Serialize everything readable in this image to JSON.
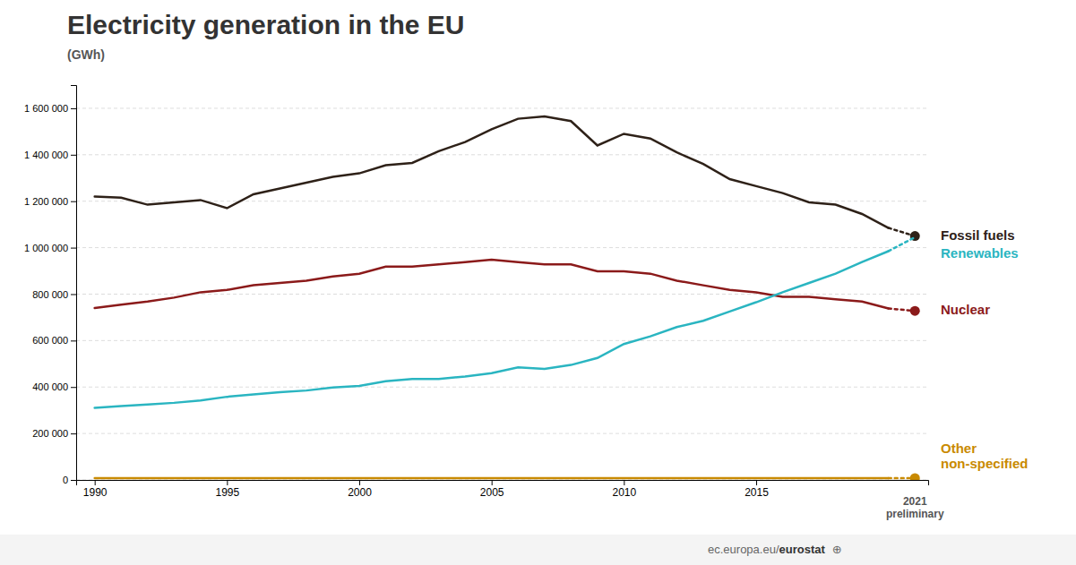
{
  "chart_data": {
    "type": "line",
    "title": "Electricity generation in the EU",
    "subtitle": "(GWh)",
    "x": [
      1990,
      1991,
      1992,
      1993,
      1994,
      1995,
      1996,
      1997,
      1998,
      1999,
      2000,
      2001,
      2002,
      2003,
      2004,
      2005,
      2006,
      2007,
      2008,
      2009,
      2010,
      2011,
      2012,
      2013,
      2014,
      2015,
      2016,
      2017,
      2018,
      2019,
      2020,
      2021
    ],
    "xlim": [
      1989.3,
      2021.5
    ],
    "xticks": [
      1990,
      1995,
      2000,
      2005,
      2010,
      2015
    ],
    "ylim": [
      0,
      1700000
    ],
    "yticks": [
      0,
      {
        "value": 200000,
        "label": "200 000"
      },
      {
        "value": 400000,
        "label": "400 000"
      },
      {
        "value": 600000,
        "label": "600 000"
      },
      {
        "value": 800000,
        "label": "800 000"
      },
      {
        "value": 1000000,
        "label": "1 000 000"
      },
      {
        "value": 1200000,
        "label": "1 200 000"
      },
      {
        "value": 1400000,
        "label": "1 400 000"
      },
      {
        "value": 1600000,
        "label": "1 600 000"
      }
    ],
    "grid": true,
    "series": [
      {
        "name": "Fossil fuels",
        "color": "#2e2118",
        "marker": "circle",
        "values": [
          1220000,
          1215000,
          1185000,
          1195000,
          1205000,
          1170000,
          1230000,
          1255000,
          1280000,
          1305000,
          1320000,
          1355000,
          1365000,
          1415000,
          1455000,
          1510000,
          1555000,
          1565000,
          1545000,
          1440000,
          1490000,
          1470000,
          1410000,
          1360000,
          1295000,
          1265000,
          1235000,
          1195000,
          1185000,
          1145000,
          1085000,
          1050000
        ]
      },
      {
        "name": "Nuclear",
        "color": "#8b1a1a",
        "marker": "circle",
        "values": [
          740000,
          755000,
          768000,
          785000,
          808000,
          818000,
          838000,
          848000,
          858000,
          876000,
          888000,
          918000,
          918000,
          928000,
          938000,
          948000,
          938000,
          928000,
          928000,
          898000,
          898000,
          888000,
          858000,
          838000,
          818000,
          808000,
          788000,
          788000,
          778000,
          768000,
          738000,
          728000
        ]
      },
      {
        "name": "Renewables",
        "color": "#2ab5c1",
        "values": [
          310000,
          318000,
          325000,
          332000,
          342000,
          358000,
          368000,
          378000,
          385000,
          398000,
          405000,
          425000,
          435000,
          435000,
          445000,
          460000,
          485000,
          478000,
          495000,
          525000,
          585000,
          618000,
          658000,
          685000,
          725000,
          765000,
          808000,
          848000,
          888000,
          938000,
          985000,
          1045000
        ]
      },
      {
        "name": "Other\nnon-specified",
        "color": "#c98a00",
        "marker": "circle",
        "values": [
          8000,
          8000,
          8000,
          8000,
          8000,
          8000,
          8000,
          8000,
          8000,
          8000,
          8000,
          8000,
          8000,
          8000,
          8000,
          8000,
          8000,
          8000,
          8000,
          8000,
          8000,
          8000,
          8000,
          8000,
          8000,
          8000,
          8000,
          8000,
          8000,
          8000,
          8000,
          8000
        ]
      }
    ],
    "annotations": [
      "2021\npreliminary",
      "ec.europa.eu/",
      "eurostat",
      "⊕"
    ]
  }
}
